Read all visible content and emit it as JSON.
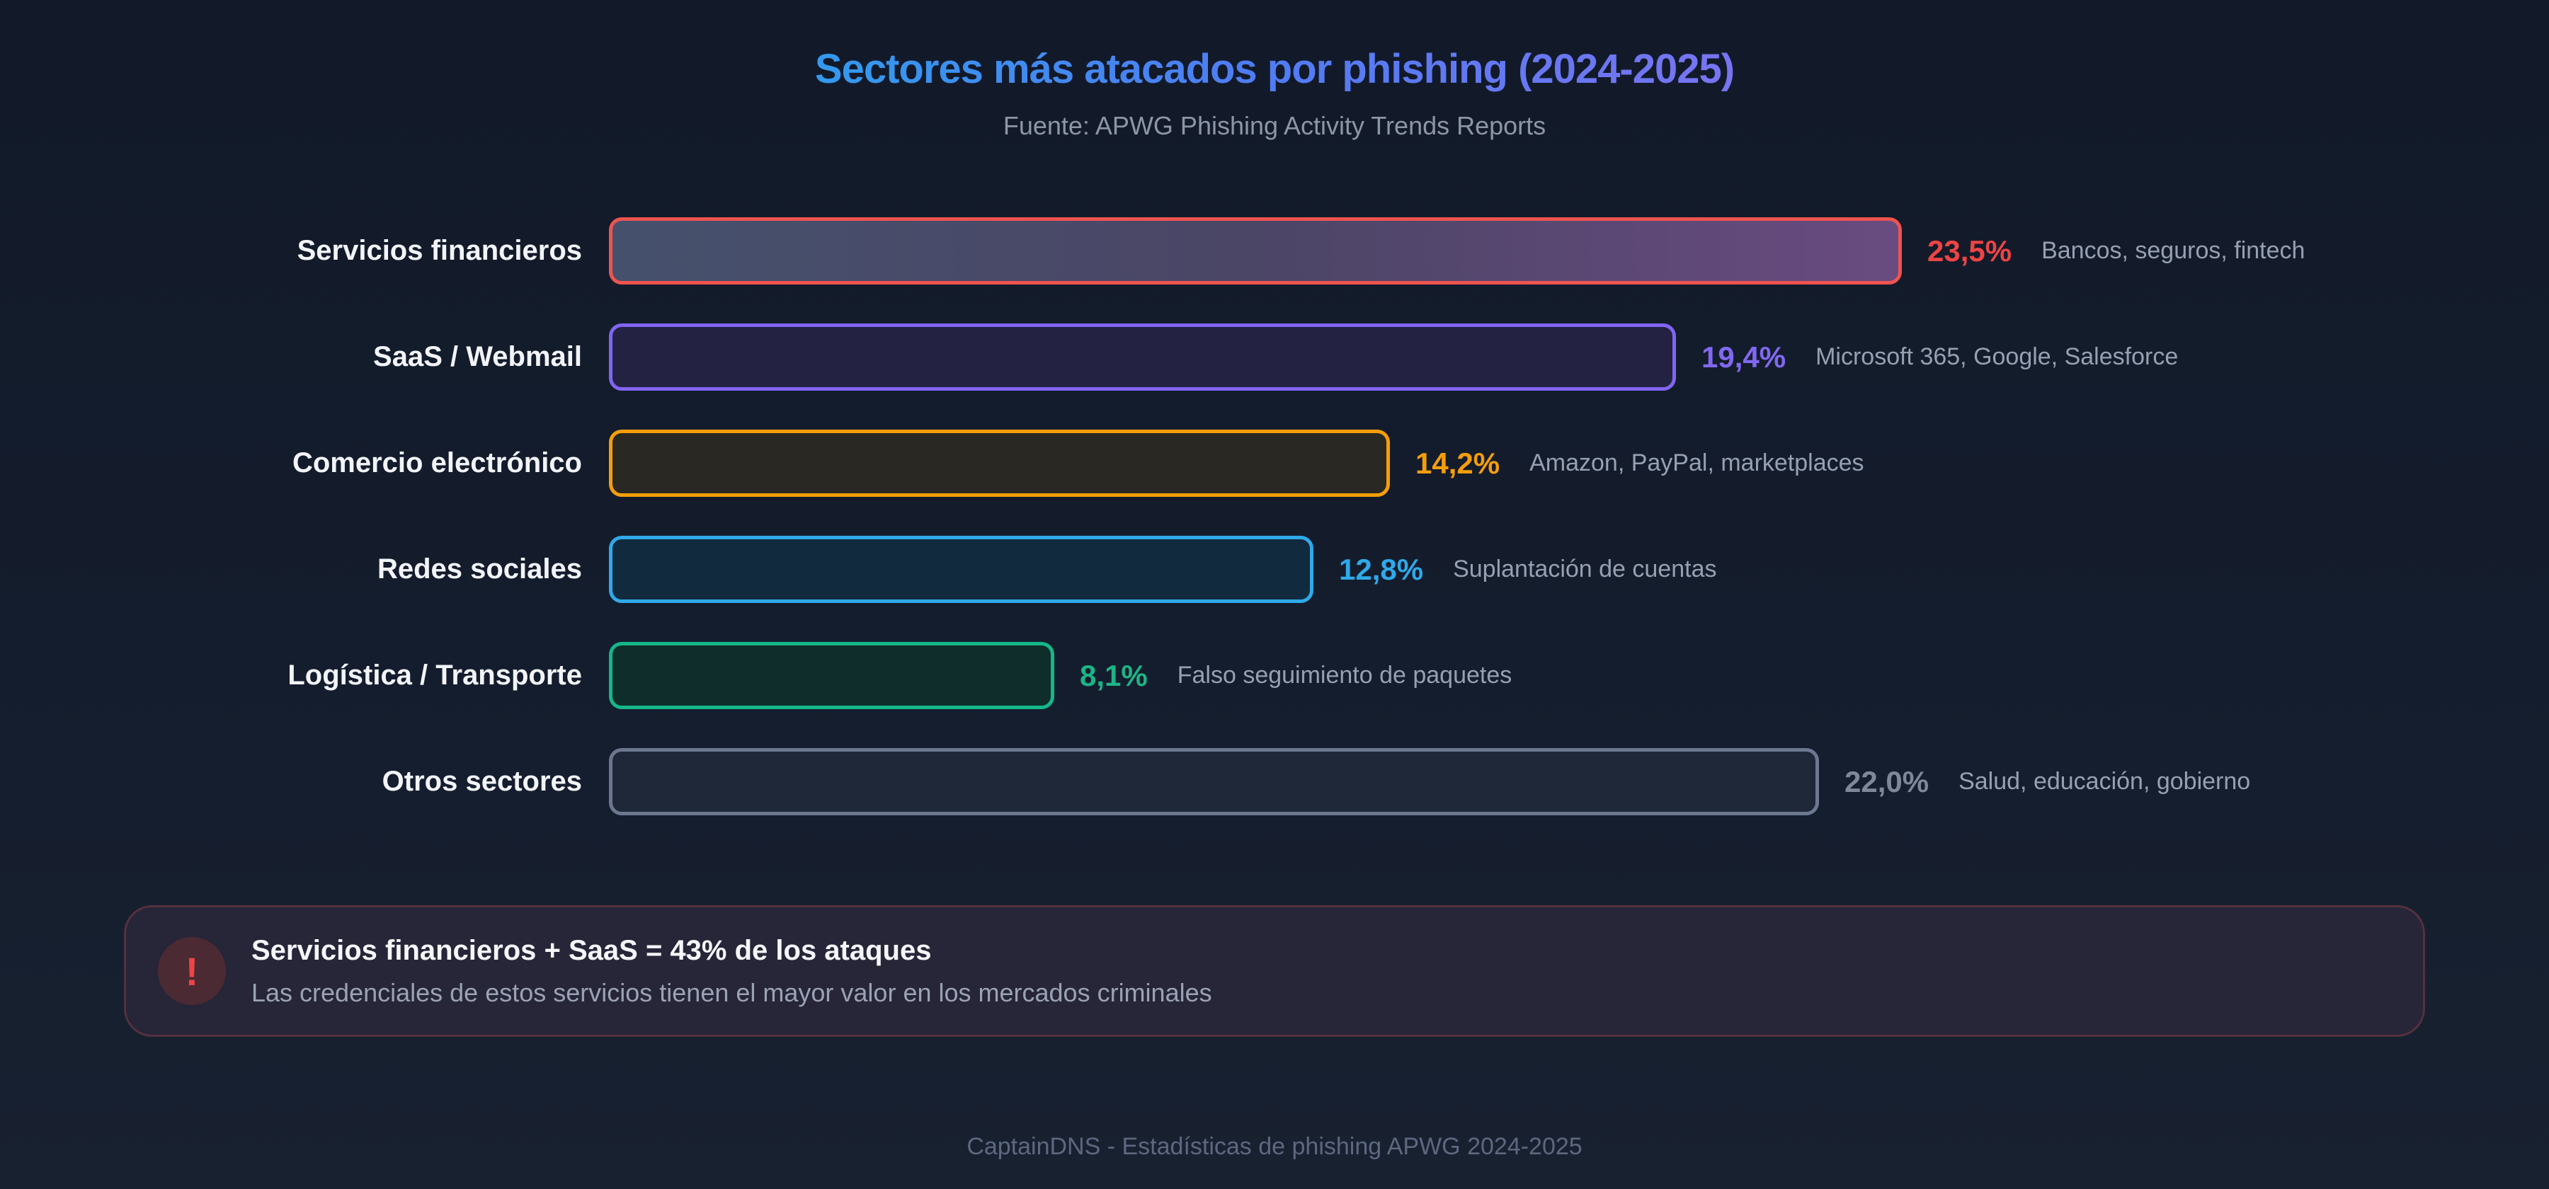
{
  "header": {
    "title": "Sectores más atacados por phishing (2024-2025)",
    "subtitle": "Fuente: APWG Phishing Activity Trends Reports"
  },
  "chart_data": {
    "type": "bar",
    "orientation": "horizontal",
    "title": "Sectores más atacados por phishing (2024-2025)",
    "source": "Fuente: APWG Phishing Activity Trends Reports",
    "unit": "%",
    "categories": [
      "Servicios financieros",
      "SaaS / Webmail",
      "Comercio electrónico",
      "Redes sociales",
      "Logística / Transporte",
      "Otros sectores"
    ],
    "values": [
      23.5,
      19.4,
      14.2,
      12.8,
      8.1,
      22.0
    ],
    "sectors": [
      {
        "label": "Servicios financieros",
        "value": 23.5,
        "value_label": "23,5%",
        "description": "Bancos, seguros, fintech",
        "border_color": "#ef5350",
        "value_color": "#ee4444",
        "fill": [
          "#45516c",
          "#4b4566",
          "#694b80"
        ]
      },
      {
        "label": "SaaS / Webmail",
        "value": 19.4,
        "value_label": "19,4%",
        "description": "Microsoft 365, Google, Salesforce",
        "border_color": "#8165f2",
        "value_color": "#8168f0",
        "fill": [
          "#242243"
        ]
      },
      {
        "label": "Comercio electrónico",
        "value": 14.2,
        "value_label": "14,2%",
        "description": "Amazon, PayPal, marketplaces",
        "border_color": "#f59e0b",
        "value_color": "#f59e0b",
        "fill": [
          "#2a2823"
        ]
      },
      {
        "label": "Redes sociales",
        "value": 12.8,
        "value_label": "12,8%",
        "description": "Suplantación de cuentas",
        "border_color": "#2fa9e9",
        "value_color": "#2fa9e9",
        "fill": [
          "#112a3e"
        ]
      },
      {
        "label": "Logística / Transporte",
        "value": 8.1,
        "value_label": "8,1%",
        "description": "Falso seguimiento de paquetes",
        "border_color": "#15b789",
        "value_color": "#1cb586",
        "fill": [
          "#0f2d2a"
        ]
      },
      {
        "label": "Otros sectores",
        "value": 22.0,
        "value_label": "22,0%",
        "description": "Salud, educación, gobierno",
        "border_color": "#6b788f",
        "value_color": "#7e8899",
        "fill": [
          "#1f2839"
        ]
      }
    ]
  },
  "alert": {
    "icon": "!",
    "title": "Servicios financieros + SaaS = 43% de los ataques",
    "subtitle": "Las credenciales de estos servicios tienen el mayor valor en los mercados criminales"
  },
  "footer": {
    "text": "CaptainDNS - Estadísticas de phishing APWG 2024-2025"
  }
}
